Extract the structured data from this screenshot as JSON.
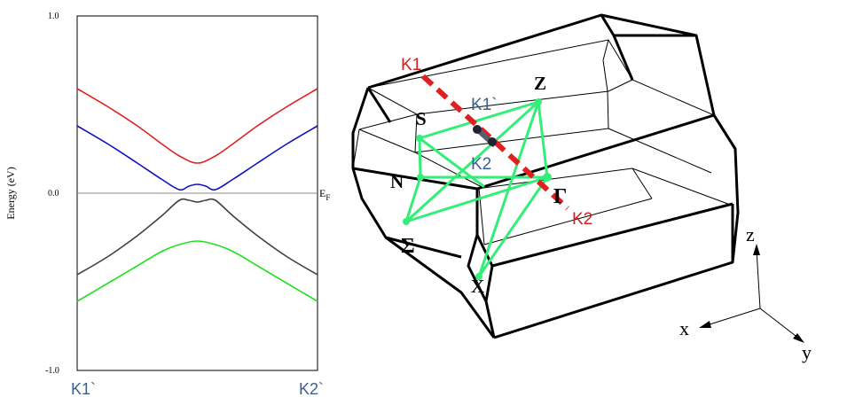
{
  "chart_data": [
    {
      "type": "line",
      "xlabel": "",
      "ylabel": "Energy (eV)",
      "ylim": [
        -1.0,
        1.0
      ],
      "y_ticks": [
        "1.0",
        "0.0",
        "-1.0"
      ],
      "x_ticks": [
        "K1`",
        "K2`"
      ],
      "fermi_label": "E",
      "fermi_subscript": "F",
      "fermi_level": 0.0,
      "grid": false,
      "colors": {
        "red": "#e02020",
        "blue": "#1010c0",
        "black": "#404040",
        "green": "#20e020",
        "k_label": "#3a6090"
      },
      "series": [
        {
          "color": "#e02020",
          "x": [
            -1.0,
            -0.75,
            -0.5,
            -0.3,
            -0.15,
            0.0,
            0.15,
            0.3,
            0.5,
            0.75,
            1.0
          ],
          "y": [
            0.59,
            0.49,
            0.38,
            0.28,
            0.21,
            0.17,
            0.21,
            0.28,
            0.38,
            0.49,
            0.59
          ]
        },
        {
          "color": "#1010c0",
          "x": [
            -1.0,
            -0.75,
            -0.5,
            -0.3,
            -0.15,
            -0.07,
            0.0,
            0.07,
            0.15,
            0.3,
            0.5,
            0.75,
            1.0
          ],
          "y": [
            0.38,
            0.28,
            0.17,
            0.08,
            0.02,
            0.04,
            0.05,
            0.04,
            0.02,
            0.08,
            0.17,
            0.28,
            0.38
          ]
        },
        {
          "color": "#404040",
          "x": [
            -1.0,
            -0.75,
            -0.5,
            -0.3,
            -0.15,
            -0.07,
            0.0,
            0.07,
            0.15,
            0.3,
            0.5,
            0.75,
            1.0
          ],
          "y": [
            -0.46,
            -0.36,
            -0.24,
            -0.13,
            -0.04,
            -0.04,
            -0.05,
            -0.04,
            -0.04,
            -0.13,
            -0.24,
            -0.36,
            -0.46
          ]
        },
        {
          "color": "#20e020",
          "x": [
            -1.0,
            -0.75,
            -0.5,
            -0.3,
            -0.15,
            0.0,
            0.15,
            0.3,
            0.5,
            0.75,
            1.0
          ],
          "y": [
            -0.61,
            -0.51,
            -0.41,
            -0.33,
            -0.29,
            -0.27,
            -0.29,
            -0.33,
            -0.41,
            -0.51,
            -0.61
          ]
        }
      ]
    },
    {
      "type": "diagram",
      "points": {
        "S": "S",
        "Z": "Z",
        "N": "N",
        "Gamma": "Γ",
        "Sigma": "Σ",
        "X": "X"
      },
      "k_path_labels": {
        "K1": "K1",
        "K2": "K2",
        "K1p": "K1`",
        "K2p": "K2`"
      },
      "axes": {
        "x": "x",
        "y": "y",
        "z": "z"
      },
      "colors": {
        "edges": "#000000",
        "path": "#33ee77",
        "k_line": "#e02020",
        "k_label": "#cc2222",
        "k_label_blue": "#3a6090"
      }
    }
  ]
}
